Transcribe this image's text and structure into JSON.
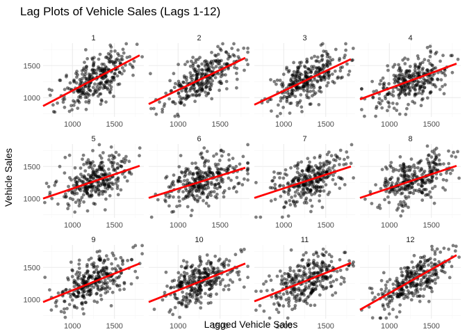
{
  "chart_data": {
    "type": "scatter",
    "title": "Lag Plots of Vehicle Sales (Lags 1-12)",
    "xlabel": "Lagged Vehicle Sales",
    "ylabel": "Vehicle Sales",
    "xlim": [
      650,
      1850
    ],
    "ylim": [
      700,
      1850
    ],
    "x_ticks": [
      1000,
      1500
    ],
    "y_ticks": [
      1000,
      1500
    ],
    "grid": true,
    "panel_layout": {
      "rows": 3,
      "cols": 4
    },
    "colors": {
      "points": "#000000",
      "fit_line": "#ff0000",
      "grid_major": "#ebebeb",
      "grid_minor": "#f5f5f5"
    },
    "panels": [
      {
        "lag": "1",
        "fit": {
          "x0": 650,
          "y0": 870,
          "x1": 1800,
          "y1": 1660
        }
      },
      {
        "lag": "2",
        "fit": {
          "x0": 650,
          "y0": 900,
          "x1": 1800,
          "y1": 1620
        }
      },
      {
        "lag": "3",
        "fit": {
          "x0": 650,
          "y0": 890,
          "x1": 1800,
          "y1": 1600
        }
      },
      {
        "lag": "4",
        "fit": {
          "x0": 650,
          "y0": 975,
          "x1": 1800,
          "y1": 1530
        }
      },
      {
        "lag": "5",
        "fit": {
          "x0": 650,
          "y0": 1000,
          "x1": 1800,
          "y1": 1510
        }
      },
      {
        "lag": "6",
        "fit": {
          "x0": 650,
          "y0": 1010,
          "x1": 1800,
          "y1": 1480
        }
      },
      {
        "lag": "7",
        "fit": {
          "x0": 650,
          "y0": 1010,
          "x1": 1800,
          "y1": 1500
        }
      },
      {
        "lag": "8",
        "fit": {
          "x0": 650,
          "y0": 1010,
          "x1": 1800,
          "y1": 1510
        }
      },
      {
        "lag": "9",
        "fit": {
          "x0": 650,
          "y0": 960,
          "x1": 1800,
          "y1": 1560
        }
      },
      {
        "lag": "10",
        "fit": {
          "x0": 650,
          "y0": 960,
          "x1": 1800,
          "y1": 1560
        }
      },
      {
        "lag": "11",
        "fit": {
          "x0": 650,
          "y0": 970,
          "x1": 1800,
          "y1": 1570
        }
      },
      {
        "lag": "12",
        "fit": {
          "x0": 650,
          "y0": 840,
          "x1": 1800,
          "y1": 1690
        }
      }
    ]
  }
}
